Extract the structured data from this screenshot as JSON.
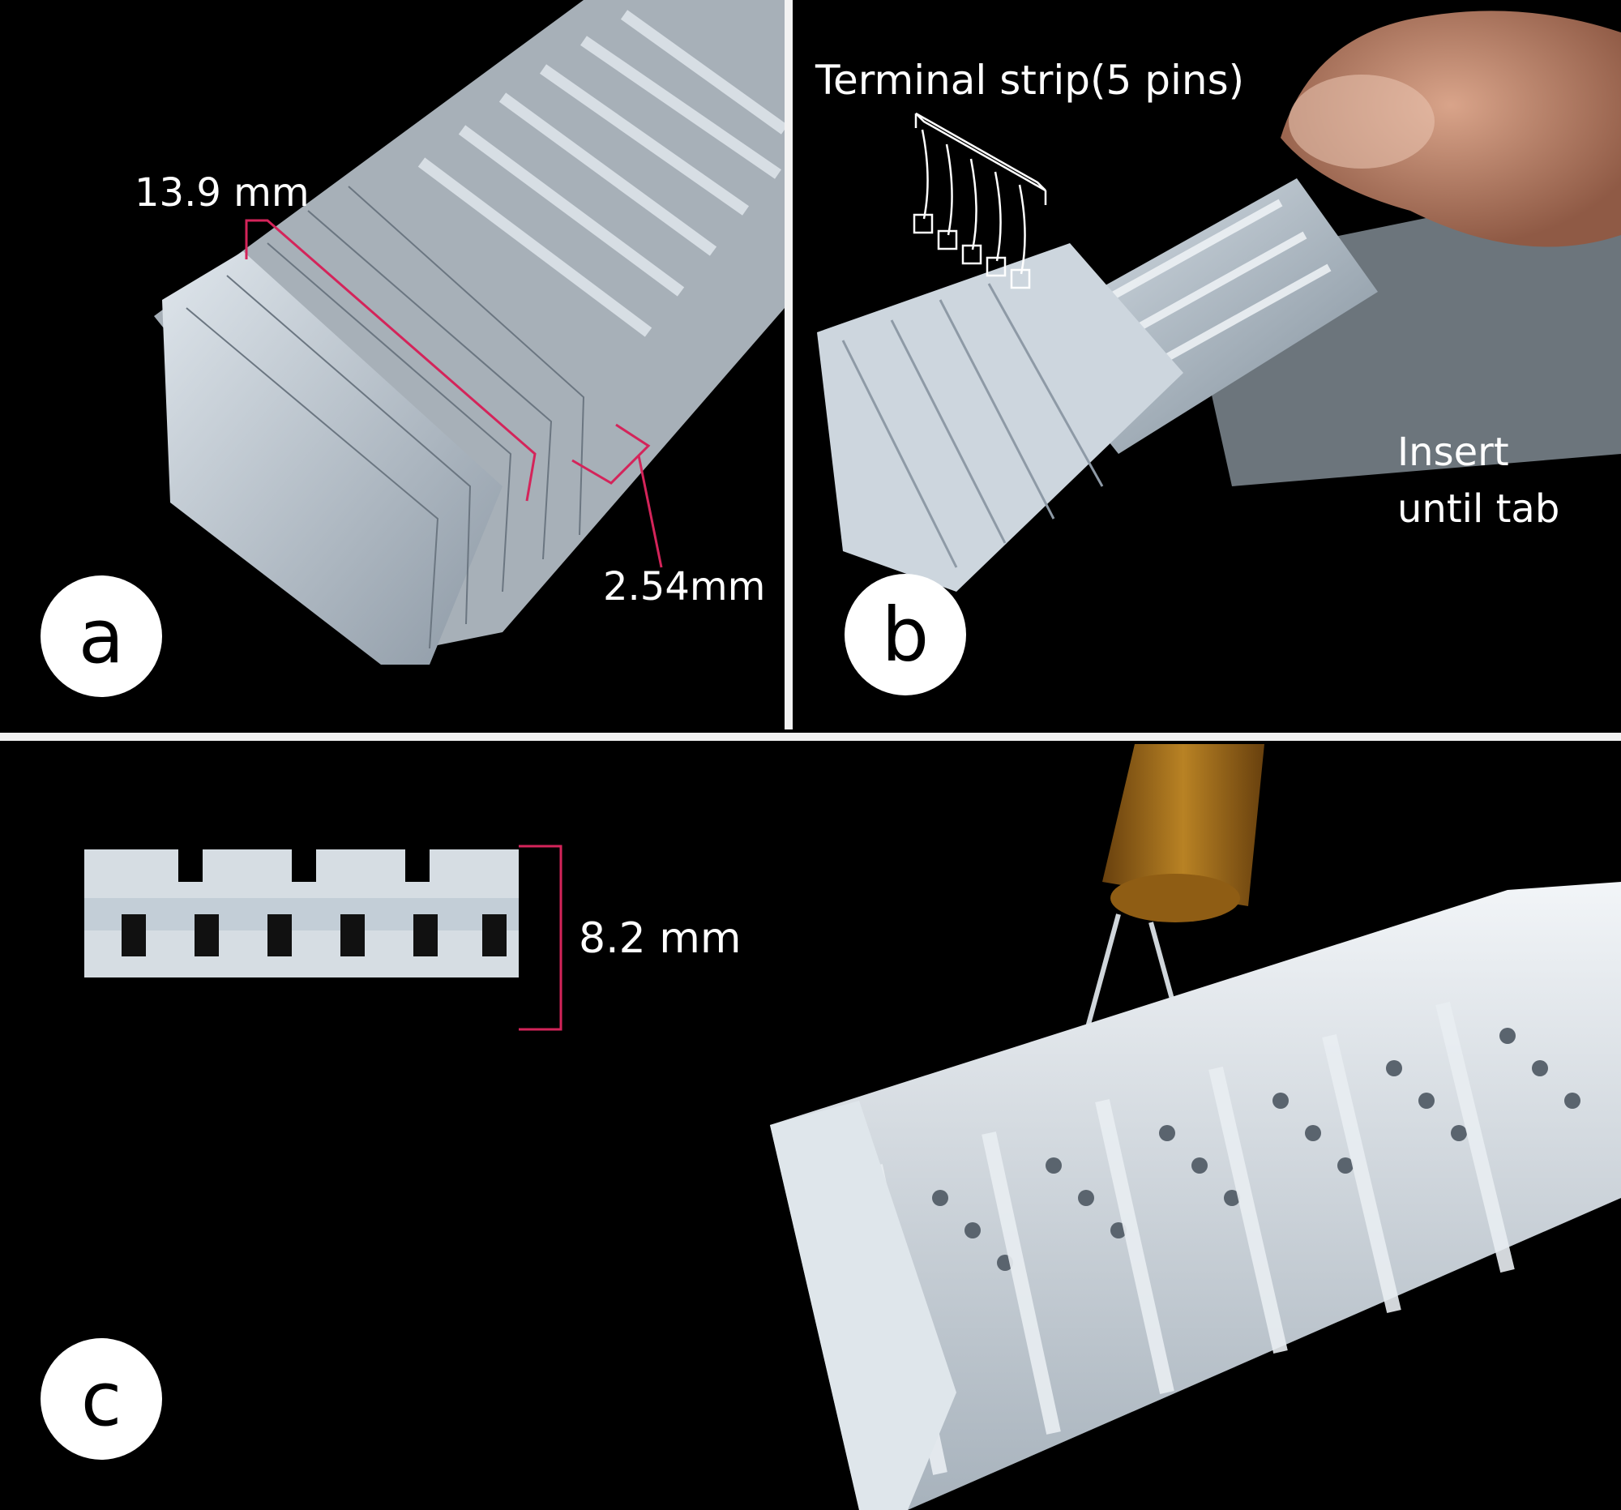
{
  "panel_a": {
    "badge": "a",
    "measure_length": "13.9 mm",
    "measure_pitch": "2.54mm"
  },
  "panel_b": {
    "badge": "b",
    "strip_label": "Terminal strip(5 pins)",
    "insert_line1": "Insert",
    "insert_line2": "until tab"
  },
  "panel_c": {
    "badge": "c",
    "measure_height": "8.2 mm"
  },
  "colors": {
    "background": "#000000",
    "divider": "#f2f2f2",
    "annotation": "#d4245a",
    "text": "#ffffff",
    "print_material": "#c9d3dc",
    "needle_hub": "#c98a1c"
  }
}
